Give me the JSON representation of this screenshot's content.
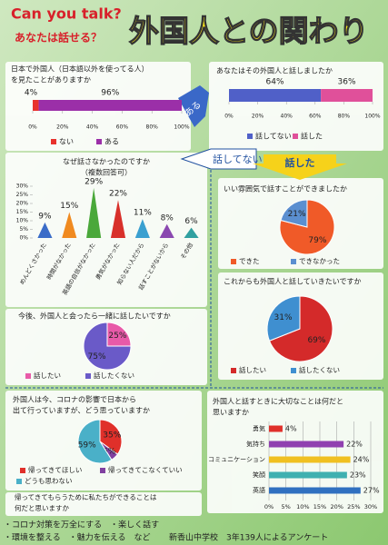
{
  "header": {
    "title_en": "Can you talk?",
    "subtitle": "あなたは話せる？",
    "title": "外国人との関わり"
  },
  "arrows": {
    "yes": "ある",
    "no_talk": "話してない",
    "talked": "話した"
  },
  "chart_data": [
    {
      "type": "bar",
      "orientation": "horizontal",
      "stacked": true,
      "title": [
        "日本で外国人（日本語以外を使ってる人）",
        "を見たことがありますか"
      ],
      "series": [
        {
          "name": "ない",
          "color": "#e8322d",
          "values": [
            4
          ],
          "value_labels": [
            "4%"
          ]
        },
        {
          "name": "ある",
          "color": "#9b2fa8",
          "values": [
            96
          ],
          "value_labels": [
            "96%"
          ]
        }
      ],
      "xlim": [
        0,
        100
      ],
      "xticks": [
        {
          "value": 0,
          "label": "0%"
        },
        {
          "value": 20,
          "label": "20%"
        },
        {
          "value": 40,
          "label": "40%"
        },
        {
          "value": 60,
          "label": "60%"
        },
        {
          "value": 80,
          "label": "80%"
        },
        {
          "value": 100,
          "label": "100%"
        }
      ]
    },
    {
      "type": "bar",
      "orientation": "horizontal",
      "stacked": true,
      "title": [
        "あなたはその外国人と話しましたか"
      ],
      "series": [
        {
          "name": "話してない",
          "color": "#5060c8",
          "values": [
            64
          ],
          "value_labels": [
            "64%"
          ]
        },
        {
          "name": "話した",
          "color": "#e0509a",
          "values": [
            36
          ],
          "value_labels": [
            "36%"
          ]
        }
      ],
      "xlim": [
        0,
        100
      ],
      "xticks": [
        {
          "value": 0,
          "label": "0%"
        },
        {
          "value": 20,
          "label": "20%"
        },
        {
          "value": 40,
          "label": "40%"
        },
        {
          "value": 60,
          "label": "60%"
        },
        {
          "value": 80,
          "label": "80%"
        },
        {
          "value": 100,
          "label": "100%"
        }
      ]
    },
    {
      "type": "bar",
      "orientation": "vertical",
      "title": [
        "なぜ話さなかったのですか",
        "（複数回答可）"
      ],
      "categories": [
        "めんどくさかった",
        "時間がなかった",
        "英語の自信がなかった",
        "勇気がなかった",
        "知らない人だから",
        "話すことがないから",
        "その他"
      ],
      "values": [
        9,
        15,
        29,
        22,
        11,
        8,
        6
      ],
      "value_labels": [
        "9%",
        "15%",
        "29%",
        "22%",
        "11%",
        "8%",
        "6%"
      ],
      "colors": [
        "#3a6cc8",
        "#f08a20",
        "#4aa83a",
        "#d8302a",
        "#3aa0d0",
        "#8a48b0",
        "#30a0a0"
      ],
      "ylim": [
        0,
        30
      ],
      "yticks": [
        {
          "value": 0,
          "label": "0%"
        },
        {
          "value": 5,
          "label": "5%"
        },
        {
          "value": 10,
          "label": "10%"
        },
        {
          "value": 15,
          "label": "15%"
        },
        {
          "value": 20,
          "label": "20%"
        },
        {
          "value": 25,
          "label": "25%"
        },
        {
          "value": 30,
          "label": "30%"
        }
      ]
    },
    {
      "type": "pie",
      "title": [
        "いい雰囲気で話すことができましたか"
      ],
      "categories": [
        "できた",
        "できなかった"
      ],
      "values": [
        79,
        21
      ],
      "value_labels": [
        "79%",
        "21%"
      ],
      "colors": [
        "#f05a28",
        "#5b8fd0"
      ]
    },
    {
      "type": "pie",
      "title": [
        "これからも外国人と話していきたいですか"
      ],
      "categories": [
        "話したい",
        "話したくない"
      ],
      "values": [
        69,
        31
      ],
      "value_labels": [
        "69%",
        "31%"
      ],
      "colors": [
        "#d42a2a",
        "#3f8fd0"
      ]
    },
    {
      "type": "pie",
      "title": [
        "今後、外国人と会ったら一緒に話したいですか"
      ],
      "categories": [
        "話したい",
        "話したくない"
      ],
      "values": [
        25,
        75
      ],
      "value_labels": [
        "25%",
        "75%"
      ],
      "colors": [
        "#e85aa8",
        "#6a5ac8"
      ]
    },
    {
      "type": "pie",
      "title": [
        "外国人は今、コロナの影響で日本から",
        "出て行っていますが、どう思っていますか"
      ],
      "categories": [
        "帰ってきてほしい",
        "帰ってきてこなくていい",
        "どうも思わない"
      ],
      "values": [
        35,
        6,
        59
      ],
      "value_labels": [
        "35%",
        "6%",
        "59%"
      ],
      "colors": [
        "#e0302a",
        "#8040a0",
        "#4ab0c8"
      ]
    },
    {
      "type": "bar",
      "orientation": "horizontal",
      "title": [
        "外国人と話すときに大切なことは何だと",
        "思いますか"
      ],
      "categories": [
        "勇気",
        "気持ち",
        "コミュニケーション",
        "笑顔",
        "英語"
      ],
      "values": [
        4,
        22,
        24,
        23,
        27
      ],
      "value_labels": [
        "4%",
        "22%",
        "24%",
        "23%",
        "27%"
      ],
      "colors": [
        "#e0302a",
        "#9040b0",
        "#f0c020",
        "#40b0b0",
        "#3070c0"
      ],
      "xlim": [
        0,
        30
      ],
      "xticks": [
        {
          "value": 0,
          "label": "0%"
        },
        {
          "value": 5,
          "label": "5%"
        },
        {
          "value": 10,
          "label": "10%"
        },
        {
          "value": 15,
          "label": "15%"
        },
        {
          "value": 20,
          "label": "20%"
        },
        {
          "value": 25,
          "label": "25%"
        },
        {
          "value": 30,
          "label": "30%"
        }
      ]
    }
  ],
  "footer": {
    "question": [
      "帰ってきてもらうために私たちができることは",
      "何だと思いますか"
    ],
    "answers": [
      "・コロナ対策を万全にする　・楽しく話す",
      "・環境を整える　・魅力を伝える　など"
    ],
    "source": "新香山中学校　3年139人によるアンケート"
  }
}
